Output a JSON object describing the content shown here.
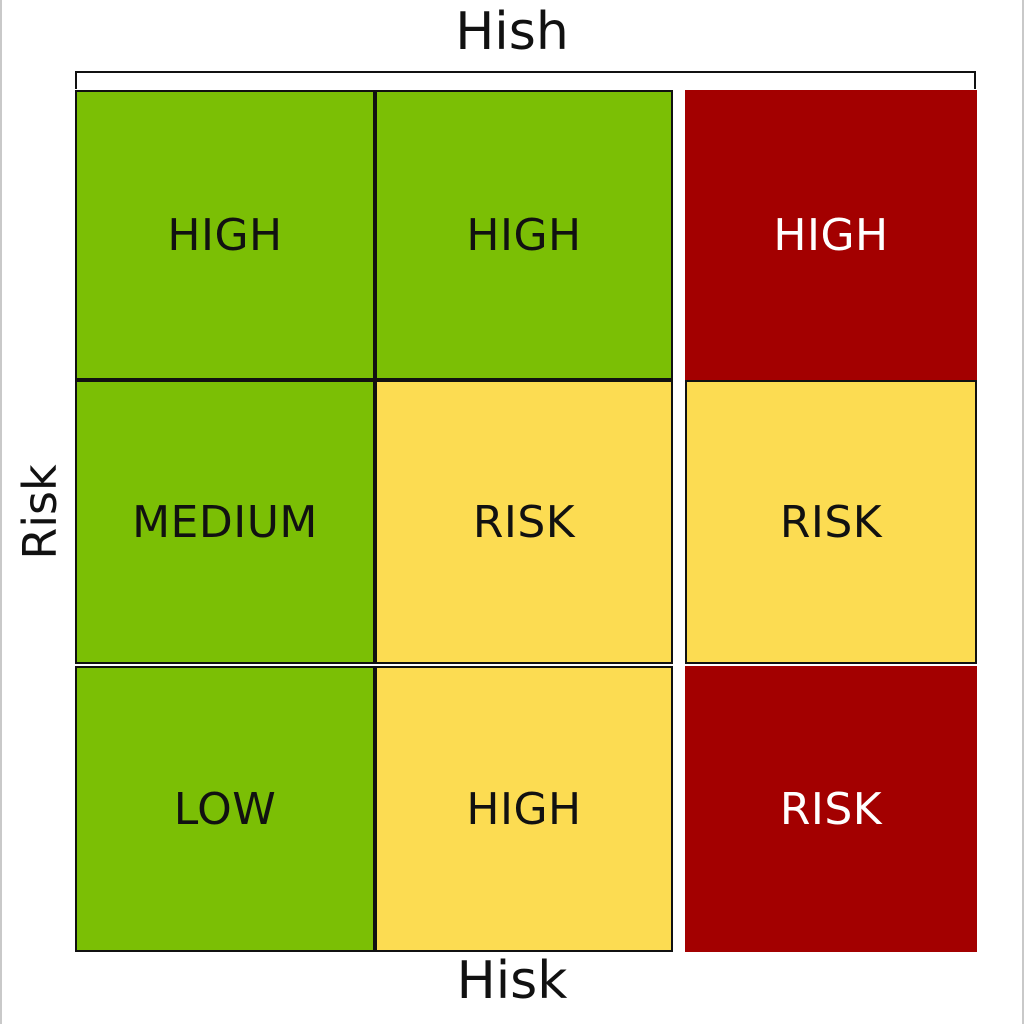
{
  "axis": {
    "top": "Hish",
    "bottom": "Hisk",
    "left": "Risk"
  },
  "colors": {
    "green": "#7bbf05",
    "yellow": "#fcdc52",
    "red": "#a30000",
    "border": "#111111"
  },
  "matrix": {
    "rows": [
      [
        "HIGH",
        "HIGH",
        "HIGH"
      ],
      [
        "MEDIUM",
        "RISK",
        "RISK"
      ],
      [
        "LOW",
        "HIGH",
        "RISK"
      ]
    ],
    "cell_colors": [
      [
        "green",
        "green",
        "red"
      ],
      [
        "green",
        "yellow",
        "yellow"
      ],
      [
        "green",
        "yellow",
        "red"
      ]
    ]
  }
}
